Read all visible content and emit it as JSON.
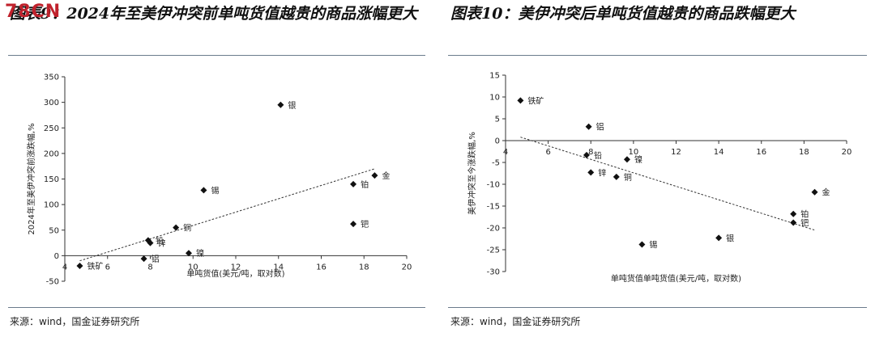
{
  "watermark": "78CN",
  "left": {
    "title": "图表9：2024年至美伊冲突前单吨货值越贵的商品涨幅更大",
    "source": "来源：wind，国金证券研究所"
  },
  "right": {
    "title": "图表10：美伊冲突后单吨货值越贵的商品跌幅更大",
    "source": "来源：wind，国金证券研究所"
  },
  "chart_data": [
    {
      "type": "scatter",
      "title": "",
      "xlabel": "单吨货值(美元/吨，取对数)",
      "ylabel": "2024年至美伊冲突前涨跌幅,%",
      "xlim": [
        4,
        20
      ],
      "ylim": [
        -50,
        350
      ],
      "xticks": [
        4,
        6,
        8,
        10,
        12,
        14,
        16,
        18,
        20
      ],
      "yticks": [
        -50,
        0,
        50,
        100,
        150,
        200,
        250,
        300,
        350
      ],
      "grid": false,
      "points": [
        {
          "label": "铁矿",
          "x": 4.7,
          "y": -20
        },
        {
          "label": "铅",
          "x": 7.9,
          "y": 30
        },
        {
          "label": "锌",
          "x": 8.0,
          "y": 25
        },
        {
          "label": "铝",
          "x": 7.7,
          "y": -6
        },
        {
          "label": "铜",
          "x": 9.2,
          "y": 55
        },
        {
          "label": "镍",
          "x": 9.8,
          "y": 5
        },
        {
          "label": "锡",
          "x": 10.5,
          "y": 128
        },
        {
          "label": "银",
          "x": 14.1,
          "y": 295
        },
        {
          "label": "铂",
          "x": 17.5,
          "y": 140
        },
        {
          "label": "钯",
          "x": 17.5,
          "y": 62
        },
        {
          "label": "金",
          "x": 18.5,
          "y": 157
        }
      ],
      "trendline": {
        "x": [
          4.7,
          18.5
        ],
        "y": [
          -10,
          170
        ]
      }
    },
    {
      "type": "scatter",
      "title": "",
      "xlabel": "单吨货值单吨货值(美元/吨，取对数)",
      "ylabel": "美伊冲突至今涨跌幅,%",
      "xlim": [
        4,
        20
      ],
      "ylim": [
        -30,
        15
      ],
      "xticks": [
        4,
        6,
        8,
        10,
        12,
        14,
        16,
        18,
        20
      ],
      "yticks": [
        -30,
        -25,
        -20,
        -15,
        -10,
        -5,
        0,
        5,
        10,
        15
      ],
      "grid": false,
      "points": [
        {
          "label": "铁矿",
          "x": 4.7,
          "y": 9.2
        },
        {
          "label": "铝",
          "x": 7.9,
          "y": 3.2
        },
        {
          "label": "铅",
          "x": 7.8,
          "y": -3.3
        },
        {
          "label": "锌",
          "x": 8.0,
          "y": -7.3
        },
        {
          "label": "镍",
          "x": 9.7,
          "y": -4.3
        },
        {
          "label": "铜",
          "x": 9.2,
          "y": -8.3
        },
        {
          "label": "锡",
          "x": 10.4,
          "y": -23.8
        },
        {
          "label": "银",
          "x": 14.0,
          "y": -22.3
        },
        {
          "label": "金",
          "x": 18.5,
          "y": -11.8
        },
        {
          "label": "铂",
          "x": 17.5,
          "y": -16.8
        },
        {
          "label": "钯",
          "x": 17.5,
          "y": -18.8
        }
      ],
      "trendline": {
        "x": [
          4.7,
          18.5
        ],
        "y": [
          0.8,
          -20.5
        ]
      }
    }
  ]
}
